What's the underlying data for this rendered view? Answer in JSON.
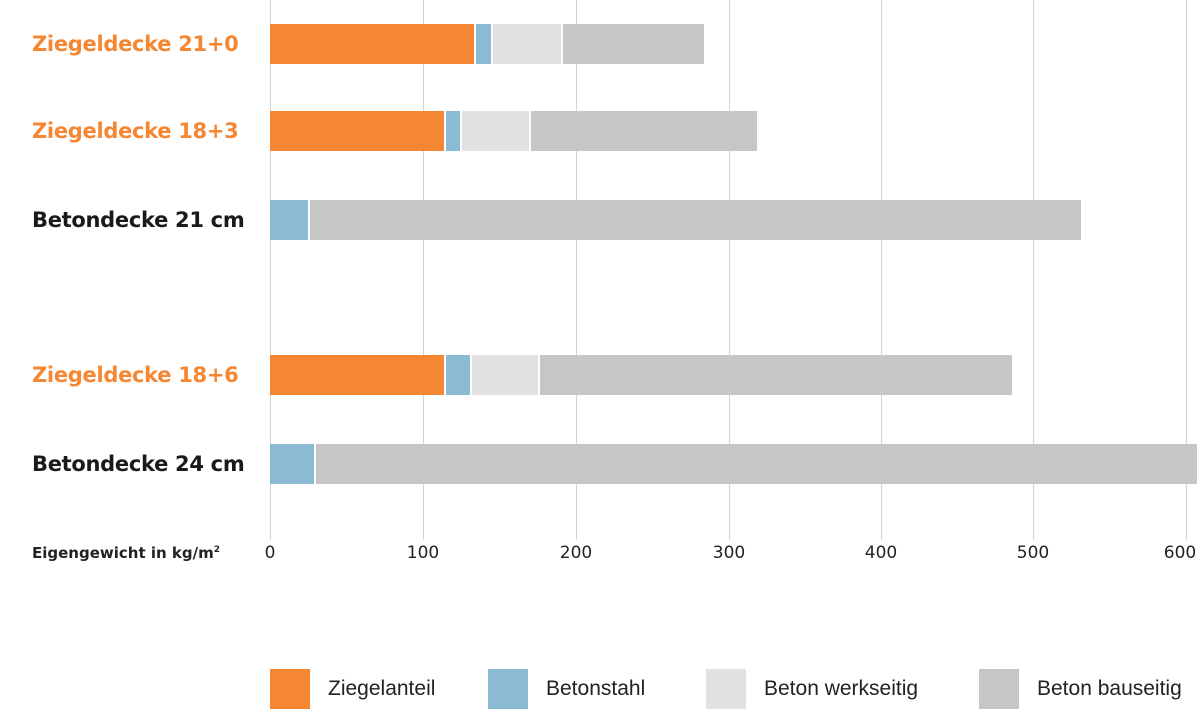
{
  "chart_data": {
    "type": "bar",
    "orientation": "horizontal",
    "stacked": true,
    "title": "",
    "xlabel": "Eigengewicht in kg/m²",
    "ylabel": "",
    "xlim": [
      0,
      610
    ],
    "xticks": [
      0,
      100,
      200,
      300,
      400,
      500,
      600
    ],
    "grid": true,
    "legend_position": "bottom",
    "categories": [
      "Ziegeldecke 21+0",
      "Ziegeldecke 18+3",
      "Betondecke 21 cm",
      "Ziegeldecke 18+6",
      "Betondecke 24 cm"
    ],
    "series": [
      {
        "name": "Ziegelanteil",
        "color": "#f58733",
        "values": [
          135,
          115,
          0,
          115,
          0
        ]
      },
      {
        "name": "Betonstahl",
        "color": "#8bbad4",
        "values": [
          11,
          11,
          26,
          17,
          30
        ]
      },
      {
        "name": "Beton werkseitig",
        "color": "#e0e1e0",
        "values": [
          46,
          45,
          0,
          45,
          0
        ]
      },
      {
        "name": "Beton bauseitig",
        "color": "#c5c6c5",
        "values": [
          92,
          148,
          505,
          309,
          577
        ]
      }
    ],
    "totals": [
      284,
      319,
      531,
      486,
      607
    ]
  },
  "labels": {
    "cat0": "Ziegeldecke 21+0",
    "cat1": "Ziegeldecke 18+3",
    "cat2": "Betondecke 21 cm",
    "cat3": "Ziegeldecke 18+6",
    "cat4": "Betondecke 24 cm",
    "axis_title": "Eigengewicht in kg/m",
    "axis_sup": "2"
  },
  "colors": {
    "ziegel_label": "#f58733",
    "beton_label": "#1a1a1a"
  },
  "ticks": [
    "0",
    "100",
    "200",
    "300",
    "400",
    "500",
    "600"
  ],
  "legend": [
    "Ziegelanteil",
    "Betonstahl",
    "Beton werkseitig",
    "Beton bauseitig"
  ]
}
